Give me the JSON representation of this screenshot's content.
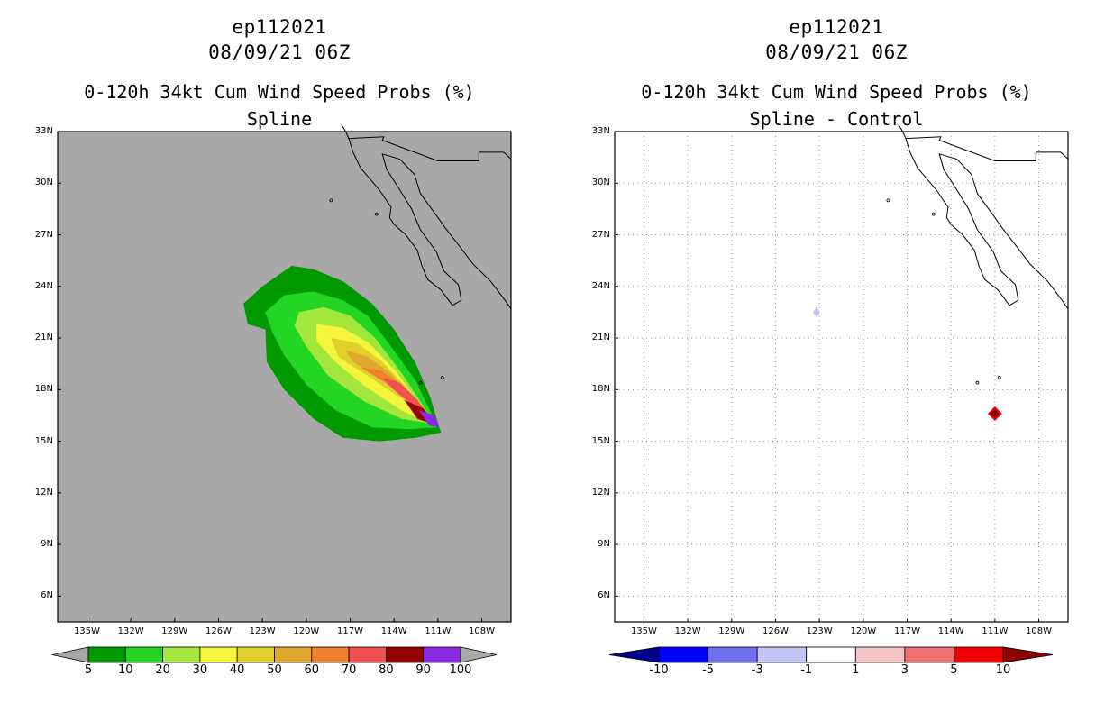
{
  "chart_data": [
    {
      "type": "heatmap",
      "storm_id": "ep112021",
      "datetime": "08/09/21 06Z",
      "title": "0-120h 34kt Cum Wind Speed Probs (%)",
      "subtitle": "Spline",
      "lat_ticks": [
        "33N",
        "30N",
        "27N",
        "24N",
        "21N",
        "18N",
        "15N",
        "12N",
        "9N",
        "6N"
      ],
      "lon_ticks": [
        "135W",
        "132W",
        "129W",
        "126W",
        "123W",
        "120W",
        "117W",
        "114W",
        "111W",
        "108W"
      ],
      "lat_range": [
        4.5,
        33
      ],
      "lon_range": [
        -137,
        -106
      ],
      "background_color": "#a8a8a8",
      "colorbar": {
        "labels": [
          "5",
          "10",
          "20",
          "30",
          "40",
          "50",
          "60",
          "70",
          "80",
          "90",
          "100"
        ],
        "colors": [
          "#009a00",
          "#23d623",
          "#a3e63c",
          "#f4f43a",
          "#e0cf2c",
          "#e0a82c",
          "#f08030",
          "#f05050",
          "#960000",
          "#8a2be2"
        ]
      },
      "contour_levels": [
        5,
        10,
        20,
        30,
        40,
        50,
        60,
        70,
        80,
        90
      ],
      "max_value_location": {
        "lat": 16.0,
        "lon": -111.0
      }
    },
    {
      "type": "heatmap",
      "storm_id": "ep112021",
      "datetime": "08/09/21 06Z",
      "title": "0-120h 34kt Cum Wind Speed Probs (%)",
      "subtitle": "Spline - Control",
      "lat_ticks": [
        "33N",
        "30N",
        "27N",
        "24N",
        "21N",
        "18N",
        "15N",
        "12N",
        "9N",
        "6N"
      ],
      "lon_ticks": [
        "135W",
        "132W",
        "129W",
        "126W",
        "123W",
        "120W",
        "117W",
        "114W",
        "111W",
        "108W"
      ],
      "lat_range": [
        4.5,
        33
      ],
      "lon_range": [
        -137,
        -106
      ],
      "grid": true,
      "colorbar": {
        "labels": [
          "-10",
          "-5",
          "-3",
          "-1",
          "1",
          "3",
          "5",
          "10"
        ],
        "colors": [
          "#00008c",
          "#0000ff",
          "#6f6ff0",
          "#c4c4f5",
          "#ffffff",
          "#f5c4c4",
          "#f07070",
          "#f00000",
          "#8c0000"
        ]
      },
      "features": [
        {
          "kind": "negative_spot",
          "lat": 22.5,
          "lon": -123.2,
          "approx_value": -2
        },
        {
          "kind": "positive_spot",
          "lat": 16.6,
          "lon": -111.0,
          "approx_value": 10
        }
      ]
    }
  ]
}
